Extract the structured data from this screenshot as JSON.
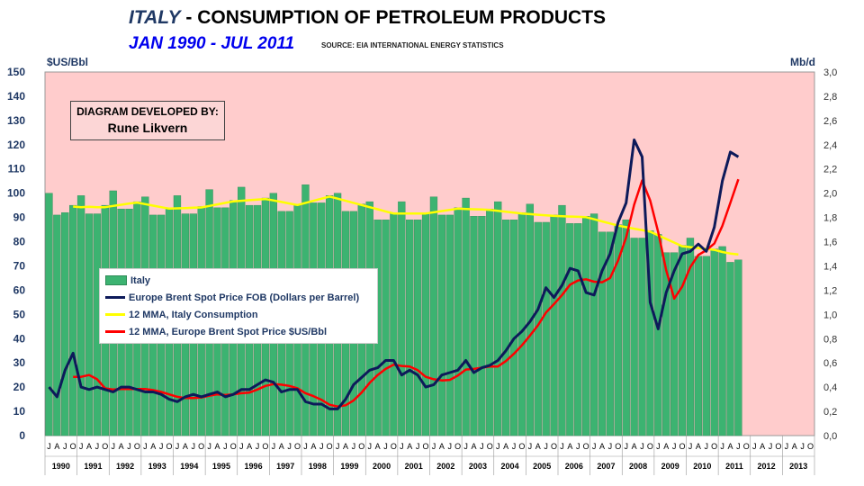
{
  "header": {
    "title_country": "ITALY",
    "title_rest": " - CONSUMPTION OF PETROLEUM PRODUCTS",
    "subtitle": "JAN 1990 - JUL 2011",
    "source": "SOURCE: EIA INTERNATIONAL ENERGY STATISTICS"
  },
  "annotation": {
    "line1": "DIAGRAM DEVELOPED BY:",
    "line2": "Rune Likvern"
  },
  "chart_data": {
    "type": "bar+line",
    "title": "ITALY - CONSUMPTION OF PETROLEUM PRODUCTS",
    "ylabel_left": "$US/Bbl",
    "ylabel_right": "Mb/d",
    "ylim_left": [
      0,
      150
    ],
    "ylim_right": [
      0,
      3.0
    ],
    "left_ticks": [
      "0",
      "10",
      "20",
      "30",
      "40",
      "50",
      "60",
      "70",
      "80",
      "90",
      "100",
      "110",
      "120",
      "130",
      "140",
      "150"
    ],
    "right_ticks": [
      "0,0",
      "0,2",
      "0,4",
      "0,6",
      "0,8",
      "1,0",
      "1,2",
      "1,4",
      "1,6",
      "1,8",
      "2,0",
      "2,2",
      "2,4",
      "2,6",
      "2,8",
      "3,0"
    ],
    "month_labels": [
      "J",
      "A",
      "J",
      "O"
    ],
    "years": [
      "1990",
      "1991",
      "1992",
      "1993",
      "1994",
      "1995",
      "1996",
      "1997",
      "1998",
      "1999",
      "2000",
      "2001",
      "2002",
      "2003",
      "2004",
      "2005",
      "2006",
      "2007",
      "2008",
      "2009",
      "2010",
      "2011",
      "2012",
      "2013"
    ],
    "resolution": "quarterly (approx.)",
    "colors": {
      "bars": "#3cb371",
      "brent": "#0d1a5a",
      "italy_mma": "#ffff00",
      "brent_mma": "#ff0000",
      "background": "#ffcccc"
    },
    "series": [
      {
        "name": "Italy",
        "unit": "Mb/d",
        "values": [
          2.0,
          1.82,
          1.84,
          1.9,
          1.98,
          1.83,
          1.83,
          1.9,
          2.02,
          1.87,
          1.87,
          1.93,
          1.97,
          1.82,
          1.82,
          1.88,
          1.98,
          1.83,
          1.83,
          1.89,
          2.03,
          1.88,
          1.88,
          1.94,
          2.05,
          1.9,
          1.9,
          1.96,
          2.0,
          1.85,
          1.85,
          1.91,
          2.07,
          1.92,
          1.92,
          1.98,
          2.0,
          1.85,
          1.85,
          1.91,
          1.93,
          1.78,
          1.78,
          1.84,
          1.93,
          1.78,
          1.78,
          1.84,
          1.97,
          1.82,
          1.82,
          1.88,
          1.96,
          1.81,
          1.81,
          1.87,
          1.93,
          1.78,
          1.78,
          1.84,
          1.91,
          1.76,
          1.76,
          1.82,
          1.9,
          1.75,
          1.75,
          1.81,
          1.83,
          1.68,
          1.68,
          1.74,
          1.78,
          1.63,
          1.63,
          1.69,
          1.66,
          1.51,
          1.51,
          1.57,
          1.63,
          1.48,
          1.48,
          1.54,
          1.56,
          1.43,
          1.45
        ]
      },
      {
        "name": "Europe Brent Spot Price FOB (Dollars per Barrel)",
        "unit": "$US/Bbl",
        "values": [
          20,
          16,
          27,
          34,
          20,
          19,
          20,
          19,
          18,
          20,
          20,
          19,
          18,
          18,
          17,
          15,
          14,
          16,
          17,
          16,
          17,
          18,
          16,
          17,
          19,
          19,
          21,
          23,
          22,
          18,
          19,
          19,
          14,
          13,
          13,
          11,
          11,
          15,
          21,
          24,
          27,
          28,
          31,
          31,
          25,
          27,
          25,
          20,
          21,
          25,
          26,
          27,
          31,
          26,
          28,
          29,
          31,
          35,
          40,
          43,
          47,
          52,
          61,
          57,
          62,
          69,
          68,
          59,
          58,
          68,
          75,
          88,
          96,
          122,
          115,
          55,
          44,
          59,
          68,
          75,
          76,
          79,
          76,
          86,
          105,
          117,
          115
        ]
      },
      {
        "name": "12 MMA, Italy Consumption",
        "unit": "Mb/d"
      },
      {
        "name": "12 MMA, Europe Brent Spot Price $US/Bbl",
        "unit": "$US/Bbl"
      }
    ]
  }
}
